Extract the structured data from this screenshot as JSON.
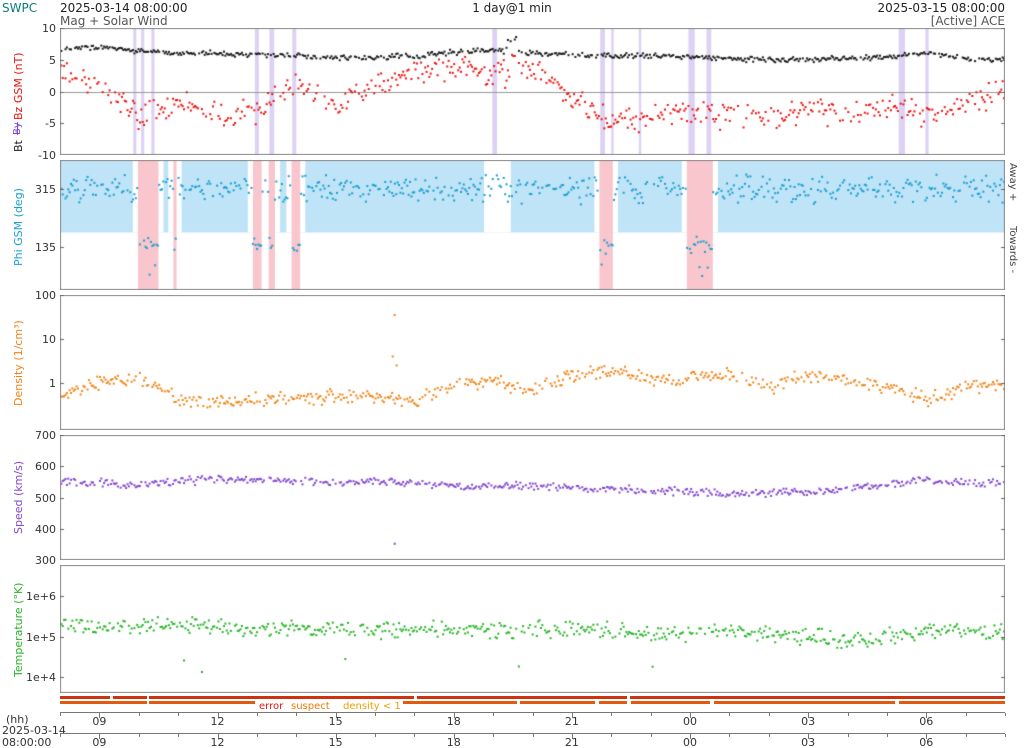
{
  "header": {
    "brand": "SWPC",
    "start_time": "2025-03-14 08:00:00",
    "cadence": "1 day@1 min",
    "end_time": "2025-03-15 08:00:00",
    "subtitle_left": "Mag + Solar Wind",
    "subtitle_right": "[Active] ACE"
  },
  "right_axis": {
    "away": "Away +",
    "towards": "Towards -"
  },
  "footer": {
    "hh_label": "(hh)",
    "date_line1": "2025-03-14",
    "date_line2": "08:00:00",
    "axis1_labels": [
      "09",
      "12",
      "15",
      "18",
      "21",
      "00",
      "03",
      "06"
    ],
    "axis2_labels": [
      "09",
      "12",
      "15",
      "18",
      "21",
      "00",
      "03",
      "06"
    ],
    "label_hours": [
      1,
      4,
      7,
      10,
      13,
      16,
      19,
      22
    ],
    "legend": {
      "error": "error",
      "suspect": "suspect",
      "density": "density < 1"
    }
  },
  "status_bars": {
    "rows": [
      {
        "color": "#cc3311",
        "segments": [
          [
            0,
            1.28
          ],
          [
            1.34,
            2.2
          ],
          [
            2.26,
            9.0
          ],
          [
            9.06,
            14.4
          ],
          [
            14.48,
            24
          ]
        ]
      },
      {
        "color": "#e05a10",
        "segments": [
          [
            0,
            2.2
          ],
          [
            2.26,
            4.95
          ],
          [
            8.6,
            11.6
          ],
          [
            11.68,
            13.6
          ],
          [
            13.7,
            14.4
          ],
          [
            14.5,
            16.5
          ],
          [
            16.6,
            21.2
          ],
          [
            21.3,
            24
          ]
        ]
      }
    ]
  },
  "chart_data": [
    {
      "id": "mag",
      "type": "scatter",
      "title": "Bt / Bz GSM (nT)",
      "left_labels": {
        "bz": "Bz GSM (nT)",
        "bt": "Bt",
        "by": "By"
      },
      "scale": "linear",
      "ylim": [
        -10,
        10
      ],
      "yticks": [
        {
          "label": "10",
          "value": 10
        },
        {
          "label": "5",
          "value": 5
        },
        {
          "label": "0",
          "value": 0
        },
        {
          "label": "-5",
          "value": -5
        },
        {
          "label": "-10",
          "value": -10
        }
      ],
      "zero_line": 0,
      "stripe_color": "rgba(150,112,220,0.32)",
      "stripes_hours": [
        [
          1.86,
          1.94
        ],
        [
          2.06,
          2.14
        ],
        [
          2.32,
          2.4
        ],
        [
          4.95,
          5.05
        ],
        [
          5.32,
          5.44
        ],
        [
          5.9,
          6.0
        ],
        [
          10.98,
          11.1
        ],
        [
          13.72,
          13.84
        ],
        [
          14.0,
          14.06
        ],
        [
          14.7,
          14.76
        ],
        [
          15.96,
          16.12
        ],
        [
          16.42,
          16.54
        ],
        [
          21.3,
          21.46
        ],
        [
          21.98,
          22.06
        ]
      ],
      "x_hours": [
        0,
        1,
        2,
        3,
        4,
        5,
        6,
        7,
        8,
        9,
        10,
        11,
        12,
        13,
        14,
        15,
        16,
        17,
        18,
        19,
        20,
        21,
        22,
        23,
        24
      ],
      "series": [
        {
          "name": "Bt",
          "color": "#1a1a1a",
          "noise": 0.5,
          "hourly": [
            6.6,
            7.0,
            6.4,
            6.0,
            6.0,
            5.8,
            5.6,
            5.2,
            5.4,
            5.6,
            6.2,
            6.5,
            6.0,
            5.8,
            5.6,
            5.6,
            5.4,
            5.2,
            5.0,
            5.0,
            5.2,
            5.4,
            6.2,
            5.2,
            5.0
          ],
          "events": [
            {
              "t0": 11.25,
              "t1": 11.62,
              "extra": 2.0,
              "lift": 2.2
            }
          ]
        },
        {
          "name": "Bz",
          "color": "#e81410",
          "noise": 2.4,
          "hourly": [
            3,
            1,
            -4,
            -2,
            -4,
            -3,
            1,
            -2,
            1,
            3,
            4,
            3,
            4,
            -1,
            -5,
            -4,
            -3,
            -4,
            -4,
            -3,
            -4,
            -2,
            -4,
            -2,
            0
          ],
          "events": [
            {
              "t0": 11.25,
              "t1": 11.62,
              "extra": 3.2
            }
          ]
        }
      ]
    },
    {
      "id": "phi",
      "type": "scatter",
      "ylabel": "Phi GSM (deg)",
      "scale": "linear",
      "ylim": [
        0,
        405
      ],
      "yticks": [
        {
          "label": "315",
          "value": 315
        },
        {
          "label": "135",
          "value": 135
        }
      ],
      "away_color": "#bfe3f7",
      "towards_color": "#f8c6cc",
      "away_band_frac": 0.55,
      "towards_hours": [
        [
          1.98,
          2.5
        ],
        [
          2.88,
          2.96
        ],
        [
          4.9,
          5.12
        ],
        [
          5.3,
          5.46
        ],
        [
          5.88,
          6.1
        ],
        [
          13.7,
          14.04
        ],
        [
          15.92,
          16.58
        ]
      ],
      "away_gaps": [
        [
          10.9,
          11.32
        ]
      ],
      "series": [
        {
          "name": "Phi",
          "color": "#19a0d2",
          "base": 315,
          "towards_value": 140,
          "noise": 50
        }
      ]
    },
    {
      "id": "density",
      "type": "scatter",
      "ylabel": "Density (1/cm³)",
      "scale": "log",
      "ylim": [
        0.085,
        100
      ],
      "yticks": [
        {
          "label": "100",
          "value": 100
        },
        {
          "label": "10",
          "value": 10
        },
        {
          "label": "1",
          "value": 1
        }
      ],
      "series": [
        {
          "name": "Density",
          "color": "#f08418",
          "noise_log": 0.2,
          "hourly": [
            0.5,
            1.0,
            1.2,
            0.4,
            0.35,
            0.4,
            0.45,
            0.5,
            0.5,
            0.4,
            0.9,
            1.1,
            0.7,
            1.4,
            1.8,
            1.2,
            1.2,
            1.5,
            0.7,
            1.5,
            1.2,
            0.8,
            0.4,
            0.8,
            0.9
          ],
          "outliers": [
            {
              "t": 8.5,
              "v": 35
            },
            {
              "t": 8.45,
              "v": 4.0
            },
            {
              "t": 8.55,
              "v": 2.5
            }
          ]
        }
      ]
    },
    {
      "id": "speed",
      "type": "scatter",
      "ylabel": "Speed (km/s)",
      "scale": "linear",
      "ylim": [
        300,
        700
      ],
      "yticks": [
        {
          "label": "700",
          "value": 700
        },
        {
          "label": "600",
          "value": 600
        },
        {
          "label": "500",
          "value": 500
        },
        {
          "label": "400",
          "value": 400
        },
        {
          "label": "300",
          "value": 300
        }
      ],
      "series": [
        {
          "name": "Speed",
          "color": "#8248d0",
          "noise": 15,
          "hourly": [
            550,
            548,
            540,
            552,
            558,
            555,
            552,
            548,
            550,
            545,
            535,
            540,
            538,
            532,
            528,
            522,
            518,
            512,
            515,
            520,
            528,
            542,
            555,
            548,
            545
          ],
          "outliers": [
            {
              "t": 8.5,
              "v": 352
            }
          ]
        }
      ]
    },
    {
      "id": "temperature",
      "type": "scatter",
      "ylabel": "Temperature (°K)",
      "scale": "log",
      "ylim": [
        4000,
        6000000
      ],
      "yticks": [
        {
          "label": "1e+6",
          "value": 1000000
        },
        {
          "label": "1e+5",
          "value": 100000
        },
        {
          "label": "1e+4",
          "value": 10000
        }
      ],
      "series": [
        {
          "name": "Temperature",
          "color": "#28b428",
          "noise_log": 0.25,
          "low_outlier_rate": 0.012,
          "low_outlier_value": 20000,
          "hourly": [
            200000,
            160000,
            180000,
            200000,
            160000,
            150000,
            180000,
            150000,
            130000,
            150000,
            160000,
            130000,
            150000,
            160000,
            130000,
            110000,
            130000,
            150000,
            120000,
            100000,
            80000,
            100000,
            150000,
            140000,
            120000
          ]
        }
      ]
    }
  ]
}
